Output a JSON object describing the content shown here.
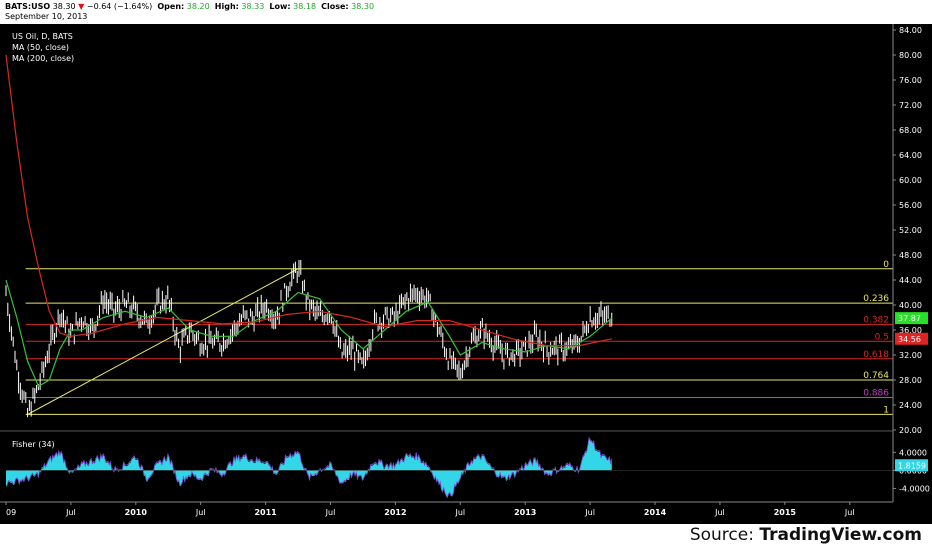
{
  "header": {
    "symbol": "BATS:USO",
    "last": "38.30",
    "change": "−0.64 (−1.64%)",
    "open_label": "Open:",
    "open": "38.20",
    "high_label": "High:",
    "high": "38.33",
    "low_label": "Low:",
    "low": "38.18",
    "close_label": "Close:",
    "close": "38.30",
    "date": "September 10, 2013"
  },
  "legend": {
    "title": "US Oil, D, BATS",
    "ma50": "MA (50, close)",
    "ma200": "MA (200, close)",
    "fisher": "Fisher (34)"
  },
  "colors": {
    "background": "#000000",
    "price_bar": "#ffffff",
    "ma50": "#36c23a",
    "ma200": "#d42a1f",
    "trendline": "#e6e66b",
    "fisher": "#33d6e6",
    "fib_yellow": "#e6e66b",
    "fib_red": "#d42a1f",
    "fib_magenta": "#c040c0"
  },
  "footer": {
    "source_prefix": "Source: ",
    "source_brand": "TradingView.com"
  },
  "chart_data": [
    {
      "type": "candlestick",
      "title": "US Oil, D, BATS",
      "y_ticks": [
        "84.00",
        "80.00",
        "76.00",
        "72.00",
        "68.00",
        "64.00",
        "60.00",
        "56.00",
        "52.00",
        "48.00",
        "44.00",
        "40.00",
        "36.00",
        "32.00",
        "28.00",
        "24.00",
        "20.00"
      ],
      "ylim": [
        20,
        84
      ],
      "x_ticks": [
        "09",
        "Jul",
        "2010",
        "Jul",
        "2011",
        "Jul",
        "2012",
        "Jul",
        "2013",
        "Jul",
        "2014",
        "Jul",
        "2015",
        "Jul"
      ],
      "price_labels": [
        {
          "value": "37.87",
          "color": "#28e028"
        },
        {
          "value": "34.56",
          "color": "#e02424"
        }
      ],
      "fib_levels": [
        {
          "label": "0",
          "value": 45.8,
          "color": "#e6e66b"
        },
        {
          "label": "0.236",
          "value": 40.3,
          "color": "#e6e66b"
        },
        {
          "label": "0.382",
          "value": 36.9,
          "color": "#d42a1f"
        },
        {
          "label": "0.5",
          "value": 34.2,
          "color": "#d42a1f"
        },
        {
          "label": "0.618",
          "value": 31.4,
          "color": "#d42a1f"
        },
        {
          "label": "0.764",
          "value": 28.0,
          "color": "#e6e66b"
        },
        {
          "label": "0.886",
          "value": 25.2,
          "color": "#c040c0"
        },
        {
          "label": "1",
          "value": 22.5,
          "color": "#e6e66b"
        }
      ],
      "trendline": {
        "from": {
          "x": "2009-03",
          "y": 22.5
        },
        "to": {
          "x": "2011-04",
          "y": 45.8
        }
      },
      "price_path": [
        {
          "x": "2009-01",
          "y": 42
        },
        {
          "x": "2009-02",
          "y": 30
        },
        {
          "x": "2009-03",
          "y": 22.5
        },
        {
          "x": "2009-04",
          "y": 27
        },
        {
          "x": "2009-05",
          "y": 33
        },
        {
          "x": "2009-06",
          "y": 39
        },
        {
          "x": "2009-07",
          "y": 35
        },
        {
          "x": "2009-08",
          "y": 38
        },
        {
          "x": "2009-09",
          "y": 36
        },
        {
          "x": "2009-10",
          "y": 41
        },
        {
          "x": "2009-11",
          "y": 39
        },
        {
          "x": "2009-12",
          "y": 40
        },
        {
          "x": "2010-01",
          "y": 39
        },
        {
          "x": "2010-02",
          "y": 37
        },
        {
          "x": "2010-03",
          "y": 40
        },
        {
          "x": "2010-04",
          "y": 41
        },
        {
          "x": "2010-05",
          "y": 33
        },
        {
          "x": "2010-06",
          "y": 36
        },
        {
          "x": "2010-07",
          "y": 34
        },
        {
          "x": "2010-08",
          "y": 34
        },
        {
          "x": "2010-09",
          "y": 34
        },
        {
          "x": "2010-10",
          "y": 36
        },
        {
          "x": "2010-11",
          "y": 38
        },
        {
          "x": "2010-12",
          "y": 38
        },
        {
          "x": "2011-01",
          "y": 40
        },
        {
          "x": "2011-02",
          "y": 38
        },
        {
          "x": "2011-03",
          "y": 43
        },
        {
          "x": "2011-04",
          "y": 45.8
        },
        {
          "x": "2011-05",
          "y": 40
        },
        {
          "x": "2011-06",
          "y": 38
        },
        {
          "x": "2011-07",
          "y": 39
        },
        {
          "x": "2011-08",
          "y": 32
        },
        {
          "x": "2011-09",
          "y": 33
        },
        {
          "x": "2011-10",
          "y": 30
        },
        {
          "x": "2011-11",
          "y": 37
        },
        {
          "x": "2011-12",
          "y": 38
        },
        {
          "x": "2012-01",
          "y": 38
        },
        {
          "x": "2012-02",
          "y": 41
        },
        {
          "x": "2012-03",
          "y": 42
        },
        {
          "x": "2012-04",
          "y": 41
        },
        {
          "x": "2012-05",
          "y": 36
        },
        {
          "x": "2012-06",
          "y": 31
        },
        {
          "x": "2012-07",
          "y": 29
        },
        {
          "x": "2012-08",
          "y": 34
        },
        {
          "x": "2012-09",
          "y": 36
        },
        {
          "x": "2012-10",
          "y": 34
        },
        {
          "x": "2012-11",
          "y": 32
        },
        {
          "x": "2012-12",
          "y": 32
        },
        {
          "x": "2013-01",
          "y": 33
        },
        {
          "x": "2013-02",
          "y": 35
        },
        {
          "x": "2013-03",
          "y": 33
        },
        {
          "x": "2013-04",
          "y": 33
        },
        {
          "x": "2013-05",
          "y": 33
        },
        {
          "x": "2013-06",
          "y": 34
        },
        {
          "x": "2013-07",
          "y": 38
        },
        {
          "x": "2013-08",
          "y": 38
        },
        {
          "x": "2013-09",
          "y": 38.3
        }
      ],
      "series": [
        {
          "name": "MA (50, close)",
          "values": [
            {
              "x": "2009-01",
              "y": 44
            },
            {
              "x": "2009-02",
              "y": 38
            },
            {
              "x": "2009-03",
              "y": 31
            },
            {
              "x": "2009-04",
              "y": 27
            },
            {
              "x": "2009-05",
              "y": 28
            },
            {
              "x": "2009-06",
              "y": 33
            },
            {
              "x": "2009-07",
              "y": 36
            },
            {
              "x": "2009-08",
              "y": 36
            },
            {
              "x": "2009-10",
              "y": 38
            },
            {
              "x": "2009-12",
              "y": 39
            },
            {
              "x": "2010-02",
              "y": 38
            },
            {
              "x": "2010-04",
              "y": 39.5
            },
            {
              "x": "2010-06",
              "y": 36
            },
            {
              "x": "2010-08",
              "y": 35
            },
            {
              "x": "2010-10",
              "y": 35
            },
            {
              "x": "2010-12",
              "y": 37.5
            },
            {
              "x": "2011-02",
              "y": 39
            },
            {
              "x": "2011-04",
              "y": 42
            },
            {
              "x": "2011-06",
              "y": 41
            },
            {
              "x": "2011-08",
              "y": 36
            },
            {
              "x": "2011-10",
              "y": 33
            },
            {
              "x": "2011-12",
              "y": 36
            },
            {
              "x": "2012-02",
              "y": 39
            },
            {
              "x": "2012-04",
              "y": 40.5
            },
            {
              "x": "2012-06",
              "y": 35
            },
            {
              "x": "2012-07",
              "y": 32
            },
            {
              "x": "2012-09",
              "y": 34
            },
            {
              "x": "2012-11",
              "y": 33
            },
            {
              "x": "2013-01",
              "y": 32.5
            },
            {
              "x": "2013-03",
              "y": 33.5
            },
            {
              "x": "2013-05",
              "y": 33
            },
            {
              "x": "2013-07",
              "y": 35
            },
            {
              "x": "2013-09",
              "y": 37.9
            }
          ]
        },
        {
          "name": "MA (200, close)",
          "values": [
            {
              "x": "2009-01",
              "y": 80
            },
            {
              "x": "2009-02",
              "y": 66
            },
            {
              "x": "2009-03",
              "y": 54
            },
            {
              "x": "2009-04",
              "y": 46
            },
            {
              "x": "2009-05",
              "y": 39
            },
            {
              "x": "2009-06",
              "y": 35.5
            },
            {
              "x": "2009-07",
              "y": 35
            },
            {
              "x": "2009-09",
              "y": 35.5
            },
            {
              "x": "2009-12",
              "y": 37
            },
            {
              "x": "2010-03",
              "y": 38
            },
            {
              "x": "2010-06",
              "y": 37.5
            },
            {
              "x": "2010-09",
              "y": 37
            },
            {
              "x": "2010-12",
              "y": 37.3
            },
            {
              "x": "2011-03",
              "y": 38.5
            },
            {
              "x": "2011-06",
              "y": 39
            },
            {
              "x": "2011-09",
              "y": 38
            },
            {
              "x": "2011-12",
              "y": 36.5
            },
            {
              "x": "2012-03",
              "y": 37.5
            },
            {
              "x": "2012-06",
              "y": 37.5
            },
            {
              "x": "2012-09",
              "y": 36
            },
            {
              "x": "2012-12",
              "y": 34.5
            },
            {
              "x": "2013-03",
              "y": 33.5
            },
            {
              "x": "2013-06",
              "y": 33.5
            },
            {
              "x": "2013-09",
              "y": 34.6
            }
          ]
        }
      ]
    },
    {
      "type": "area",
      "title": "Fisher (34)",
      "y_ticks": [
        "4.0000",
        "0.0000",
        "-4.0000"
      ],
      "ylim": [
        -7,
        8.5
      ],
      "value_label": "1.8159",
      "series": [
        {
          "name": "Fisher (34)",
          "values": [
            {
              "x": "2009-01",
              "y": -3
            },
            {
              "x": "2009-03",
              "y": -2
            },
            {
              "x": "2009-04",
              "y": -1
            },
            {
              "x": "2009-05",
              "y": 2
            },
            {
              "x": "2009-06",
              "y": 4
            },
            {
              "x": "2009-07",
              "y": -1
            },
            {
              "x": "2009-08",
              "y": 1
            },
            {
              "x": "2009-10",
              "y": 3
            },
            {
              "x": "2009-11",
              "y": 0
            },
            {
              "x": "2009-12",
              "y": 1
            },
            {
              "x": "2010-01",
              "y": 3
            },
            {
              "x": "2010-02",
              "y": -2
            },
            {
              "x": "2010-03",
              "y": 1
            },
            {
              "x": "2010-04",
              "y": 3
            },
            {
              "x": "2010-05",
              "y": -3
            },
            {
              "x": "2010-06",
              "y": -1
            },
            {
              "x": "2010-07",
              "y": -2
            },
            {
              "x": "2010-08",
              "y": 0
            },
            {
              "x": "2010-09",
              "y": -1
            },
            {
              "x": "2010-10",
              "y": 2
            },
            {
              "x": "2010-11",
              "y": 3
            },
            {
              "x": "2010-12",
              "y": 2
            },
            {
              "x": "2011-01",
              "y": 2
            },
            {
              "x": "2011-02",
              "y": -1
            },
            {
              "x": "2011-03",
              "y": 3
            },
            {
              "x": "2011-04",
              "y": 4
            },
            {
              "x": "2011-05",
              "y": -2
            },
            {
              "x": "2011-06",
              "y": 0
            },
            {
              "x": "2011-07",
              "y": 1
            },
            {
              "x": "2011-08",
              "y": -3
            },
            {
              "x": "2011-09",
              "y": -1
            },
            {
              "x": "2011-10",
              "y": -2
            },
            {
              "x": "2011-11",
              "y": 2
            },
            {
              "x": "2011-12",
              "y": 1
            },
            {
              "x": "2012-01",
              "y": 1
            },
            {
              "x": "2012-02",
              "y": 3
            },
            {
              "x": "2012-03",
              "y": 3
            },
            {
              "x": "2012-04",
              "y": 1
            },
            {
              "x": "2012-05",
              "y": -3
            },
            {
              "x": "2012-06",
              "y": -6
            },
            {
              "x": "2012-07",
              "y": -2
            },
            {
              "x": "2012-08",
              "y": 2
            },
            {
              "x": "2012-09",
              "y": 3
            },
            {
              "x": "2012-10",
              "y": 0
            },
            {
              "x": "2012-11",
              "y": -2
            },
            {
              "x": "2012-12",
              "y": -1
            },
            {
              "x": "2013-01",
              "y": 1
            },
            {
              "x": "2013-02",
              "y": 2
            },
            {
              "x": "2013-03",
              "y": -1
            },
            {
              "x": "2013-04",
              "y": 0
            },
            {
              "x": "2013-05",
              "y": 1
            },
            {
              "x": "2013-06",
              "y": 0
            },
            {
              "x": "2013-07",
              "y": 7
            },
            {
              "x": "2013-08",
              "y": 3
            },
            {
              "x": "2013-09",
              "y": 1.8
            }
          ]
        }
      ]
    }
  ]
}
